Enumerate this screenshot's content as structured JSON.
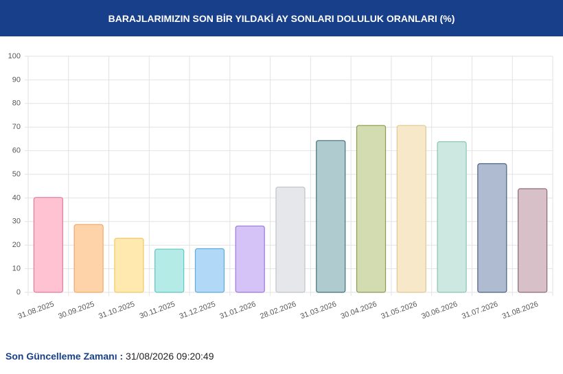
{
  "chart_data": {
    "type": "bar",
    "title": "BARAJLARIMIZIN SON BİR YILDAKİ AY SONLARI DOLULUK ORANLARI (%)",
    "categories": [
      "31.08.2025",
      "30.09.2025",
      "31.10.2025",
      "30.11.2025",
      "31.12.2025",
      "31.01.2026",
      "28.02.2026",
      "31.03.2026",
      "30.04.2026",
      "31.05.2026",
      "30.06.2026",
      "31.07.2026",
      "31.08.2026"
    ],
    "values": [
      40.2,
      28.7,
      22.9,
      18.3,
      18.5,
      28.1,
      44.6,
      64.3,
      70.7,
      70.7,
      63.8,
      54.5,
      43.9
    ],
    "colors": [
      "#ffc2d2",
      "#fed3a9",
      "#ffe9ae",
      "#b4ebe7",
      "#b1d8f7",
      "#d5c3f8",
      "#e6e7ea",
      "#b0cbd0",
      "#d3dbb0",
      "#f6e8c9",
      "#cde8e0",
      "#aebbd0",
      "#d8c0c8"
    ],
    "border_colors": [
      "#e57a9a",
      "#f0a868",
      "#f0c860",
      "#5cc6c0",
      "#5aaadd",
      "#9a78d8",
      "#c0c2c8",
      "#3f6f78",
      "#8a9a50",
      "#e0c890",
      "#88c4b4",
      "#4a6080",
      "#906878"
    ],
    "ylim": [
      0,
      100
    ],
    "yticks": [
      0,
      10,
      20,
      30,
      40,
      50,
      60,
      70,
      80,
      90,
      100
    ],
    "grid": true
  },
  "footer": {
    "label": "Son Güncelleme Zamanı :",
    "value": "31/08/2026 09:20:49"
  }
}
